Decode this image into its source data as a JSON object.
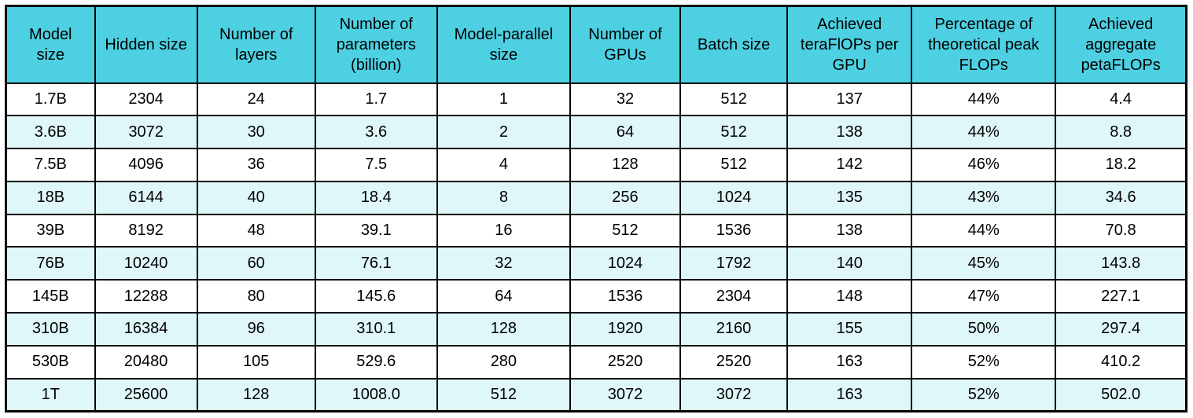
{
  "chart_data": {
    "type": "table",
    "columns": [
      "Model size",
      "Hidden size",
      "Number of layers",
      "Number of parameters (billion)",
      "Model-parallel size",
      "Number of GPUs",
      "Batch size",
      "Achieved teraFlOPs per GPU",
      "Percentage of theoretical peak FLOPs",
      "Achieved aggregate petaFLOPs"
    ],
    "rows": [
      [
        "1.7B",
        "2304",
        "24",
        "1.7",
        "1",
        "32",
        "512",
        "137",
        "44%",
        "4.4"
      ],
      [
        "3.6B",
        "3072",
        "30",
        "3.6",
        "2",
        "64",
        "512",
        "138",
        "44%",
        "8.8"
      ],
      [
        "7.5B",
        "4096",
        "36",
        "7.5",
        "4",
        "128",
        "512",
        "142",
        "46%",
        "18.2"
      ],
      [
        "18B",
        "6144",
        "40",
        "18.4",
        "8",
        "256",
        "1024",
        "135",
        "43%",
        "34.6"
      ],
      [
        "39B",
        "8192",
        "48",
        "39.1",
        "16",
        "512",
        "1536",
        "138",
        "44%",
        "70.8"
      ],
      [
        "76B",
        "10240",
        "60",
        "76.1",
        "32",
        "1024",
        "1792",
        "140",
        "45%",
        "143.8"
      ],
      [
        "145B",
        "12288",
        "80",
        "145.6",
        "64",
        "1536",
        "2304",
        "148",
        "47%",
        "227.1"
      ],
      [
        "310B",
        "16384",
        "96",
        "310.1",
        "128",
        "1920",
        "2160",
        "155",
        "50%",
        "297.4"
      ],
      [
        "530B",
        "20480",
        "105",
        "529.6",
        "280",
        "2520",
        "2520",
        "163",
        "52%",
        "410.2"
      ],
      [
        "1T",
        "25600",
        "128",
        "1008.0",
        "512",
        "3072",
        "3072",
        "163",
        "52%",
        "502.0"
      ]
    ]
  },
  "colors": {
    "header_bg": "#4DD0E1",
    "stripe_bg": "#E0F7FA",
    "row_bg": "#FFFFFF",
    "border": "#000000",
    "text": "#000000"
  }
}
